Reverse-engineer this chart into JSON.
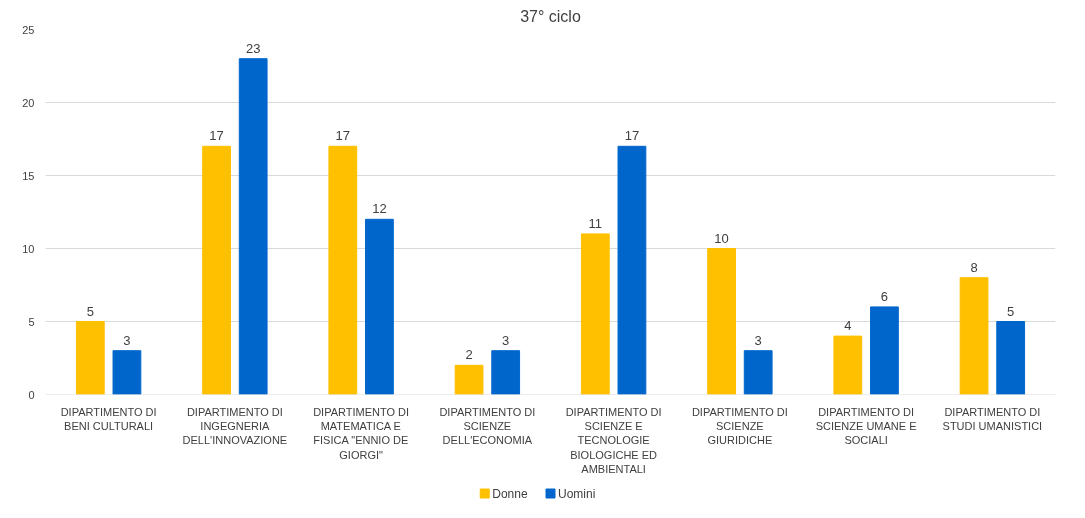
{
  "chart_data": {
    "type": "bar",
    "title": "37° ciclo",
    "categories": [
      "DIPARTIMENTO DI BENI CULTURALI",
      "DIPARTIMENTO DI INGEGNERIA DELL'INNOVAZIONE",
      "DIPARTIMENTO DI MATEMATICA E FISICA \"ENNIO DE GIORGI\"",
      "DIPARTIMENTO DI SCIENZE DELL'ECONOMIA",
      "DIPARTIMENTO DI SCIENZE E TECNOLOGIE BIOLOGICHE ED AMBIENTALI",
      "DIPARTIMENTO DI SCIENZE GIURIDICHE",
      "DIPARTIMENTO DI SCIENZE UMANE E SOCIALI",
      "DIPARTIMENTO DI STUDI UMANISTICI"
    ],
    "series": [
      {
        "name": "Donne",
        "color": "#ffc000",
        "values": [
          5,
          17,
          17,
          2,
          11,
          10,
          4,
          8
        ]
      },
      {
        "name": "Uomini",
        "color": "#0066cc",
        "values": [
          3,
          23,
          12,
          3,
          17,
          3,
          6,
          5
        ]
      }
    ],
    "ylim": [
      0,
      25
    ],
    "yticks": [
      0,
      5,
      10,
      15,
      20,
      25
    ],
    "grid": "y",
    "legend": "bottom",
    "data_labels": true
  }
}
